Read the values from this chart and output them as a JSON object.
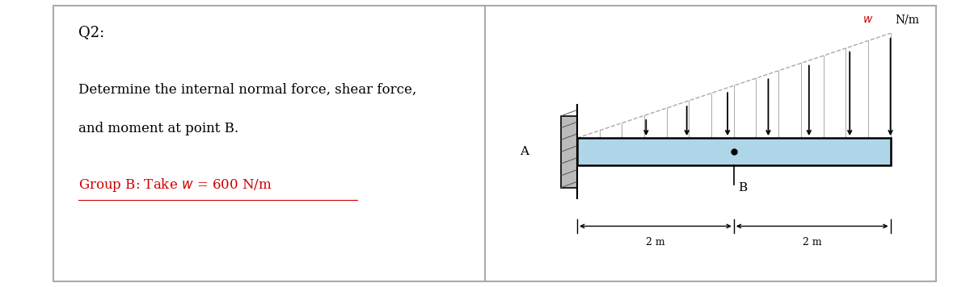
{
  "background_color": "#ffffff",
  "title": "Q2:",
  "title_fontsize": 13,
  "problem_text_line1": "Determine the internal normal force, shear force,",
  "problem_text_line2": "and moment at point B.",
  "problem_text_fontsize": 12,
  "group_color": "#cc0000",
  "group_fontsize": 12,
  "beam_color": "#aed6e8",
  "beam_edge_color": "#000000",
  "num_arrows": 7,
  "panel_divider": 0.5,
  "border_color": "#aaaaaa"
}
